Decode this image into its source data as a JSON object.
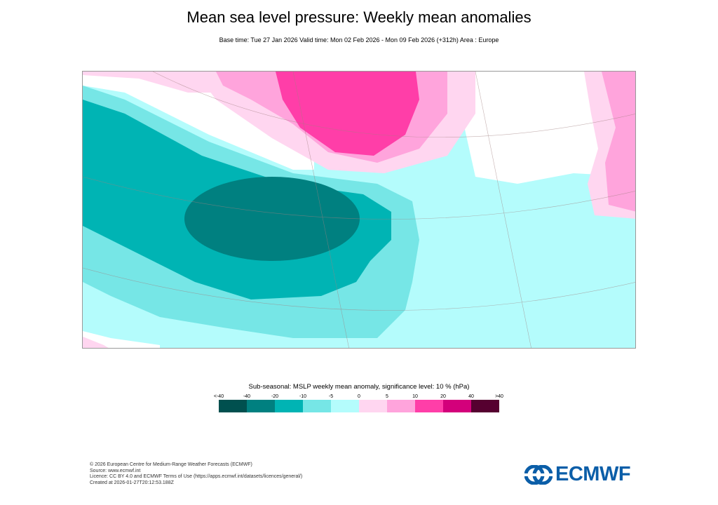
{
  "title": "Mean sea level pressure: Weekly mean anomalies",
  "subtitle": "Base time: Tue 27 Jan 2026 Valid time: Mon 02 Feb 2026 - Mon 09 Feb 2026 (+312h) Area : Europe",
  "legend": {
    "title": "Sub-seasonal: MSLP weekly mean anomaly, significance level: 10 % (hPa)",
    "ticks": [
      "<-40",
      "-40",
      "-20",
      "-10",
      "-5",
      "0",
      "5",
      "10",
      "20",
      "40",
      ">40"
    ],
    "colors": [
      "#00504f",
      "#008080",
      "#00b4b4",
      "#76e6e6",
      "#b4fcfc",
      "#ffd6f0",
      "#ffa4dc",
      "#ff3ea8",
      "#d3007b",
      "#560030"
    ]
  },
  "footer": {
    "lines": [
      "© 2026 European Centre for Medium-Range Weather Forecasts (ECMWF)",
      "Source: www.ecmwf.int",
      "Licence: CC BY 4.0 and ECMWF Terms of Use (https://apps.ecmwf.int/datasets/licences/general/)",
      "Created at 2026-01-27T20:12:53.188Z"
    ]
  },
  "logo": {
    "text": "ECMWF",
    "color": "#0b5ea8"
  }
}
